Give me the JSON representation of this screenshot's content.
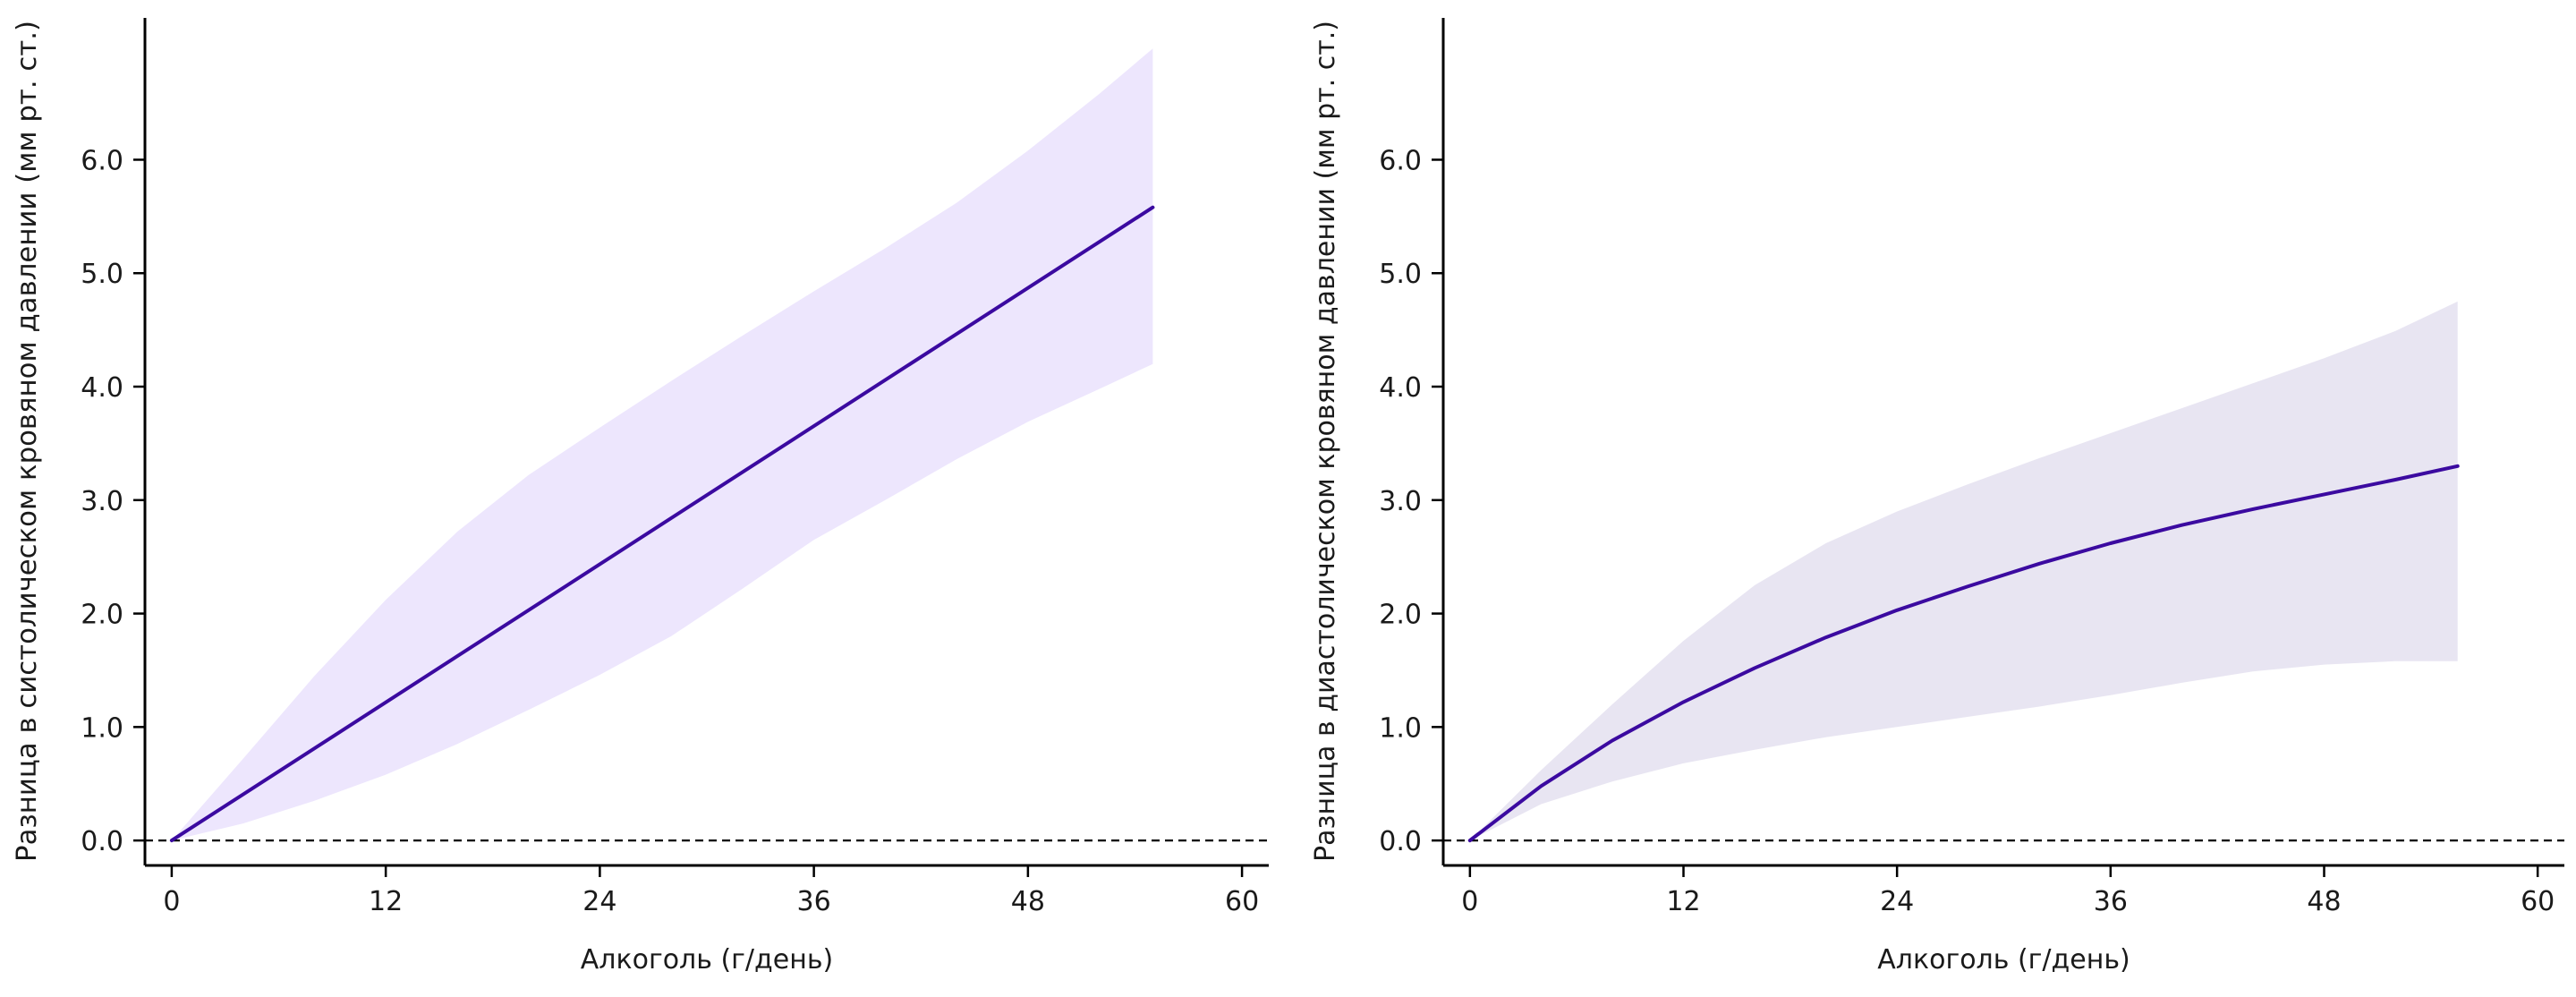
{
  "chart_data": [
    {
      "type": "line",
      "xlabel": "Алкоголь (г/день)",
      "ylabel": "Разница в систолическом кровяном давлении (мм рт. ст.)",
      "xlim": [
        -1.5,
        61.5
      ],
      "ylim": [
        -0.22,
        7.25
      ],
      "xticks": [
        0,
        12,
        24,
        36,
        48,
        60
      ],
      "xtick_labels": [
        "0",
        "12",
        "24",
        "36",
        "48",
        "60"
      ],
      "yticks": [
        0,
        1,
        2,
        3,
        4,
        5,
        6
      ],
      "ytick_labels": [
        "0.0",
        "1.0",
        "2.0",
        "3.0",
        "4.0",
        "5.0",
        "6.0"
      ],
      "reference_line": 0,
      "grid": false,
      "line_color": "#3b0aa0",
      "band_color": "#ede6fd",
      "series": [
        {
          "x": [
            0,
            55
          ],
          "y": [
            0,
            5.58
          ]
        }
      ],
      "band": {
        "x": [
          0,
          4,
          8,
          12,
          16,
          20,
          24,
          28,
          32,
          36,
          40,
          44,
          48,
          52,
          55
        ],
        "upper": [
          0,
          0.72,
          1.45,
          2.12,
          2.72,
          3.22,
          3.64,
          4.05,
          4.45,
          4.84,
          5.22,
          5.62,
          6.08,
          6.58,
          6.98
        ],
        "lower": [
          0,
          0.15,
          0.35,
          0.58,
          0.85,
          1.15,
          1.46,
          1.8,
          2.22,
          2.65,
          3.0,
          3.36,
          3.69,
          3.98,
          4.2
        ]
      }
    },
    {
      "type": "line",
      "xlabel": "Алкоголь (г/день)",
      "ylabel": "Разница в диастолическом кровяном давлении (мм рт. ст.)",
      "xlim": [
        -1.5,
        61.5
      ],
      "ylim": [
        -0.22,
        7.25
      ],
      "xticks": [
        0,
        12,
        24,
        36,
        48,
        60
      ],
      "xtick_labels": [
        "0",
        "12",
        "24",
        "36",
        "48",
        "60"
      ],
      "yticks": [
        0,
        1,
        2,
        3,
        4,
        5,
        6
      ],
      "ytick_labels": [
        "0.0",
        "1.0",
        "2.0",
        "3.0",
        "4.0",
        "5.0",
        "6.0"
      ],
      "reference_line": 0,
      "grid": false,
      "line_color": "#3b0aa0",
      "band_color": "#e8e5f2",
      "series": [
        {
          "x": [
            0,
            4,
            8,
            12,
            16,
            20,
            24,
            28,
            32,
            36,
            40,
            44,
            48,
            52,
            55.5
          ],
          "y": [
            0,
            0.48,
            0.88,
            1.22,
            1.52,
            1.79,
            2.03,
            2.24,
            2.44,
            2.62,
            2.78,
            2.92,
            3.05,
            3.18,
            3.3
          ]
        }
      ],
      "band": {
        "x": [
          0,
          4,
          8,
          12,
          16,
          20,
          24,
          28,
          32,
          36,
          40,
          44,
          48,
          52,
          55.5
        ],
        "upper": [
          0,
          0.62,
          1.2,
          1.76,
          2.25,
          2.62,
          2.9,
          3.14,
          3.37,
          3.59,
          3.81,
          4.03,
          4.25,
          4.49,
          4.75
        ],
        "lower": [
          0,
          0.32,
          0.52,
          0.68,
          0.8,
          0.91,
          1.0,
          1.09,
          1.18,
          1.28,
          1.39,
          1.49,
          1.55,
          1.58,
          1.58
        ]
      }
    }
  ]
}
